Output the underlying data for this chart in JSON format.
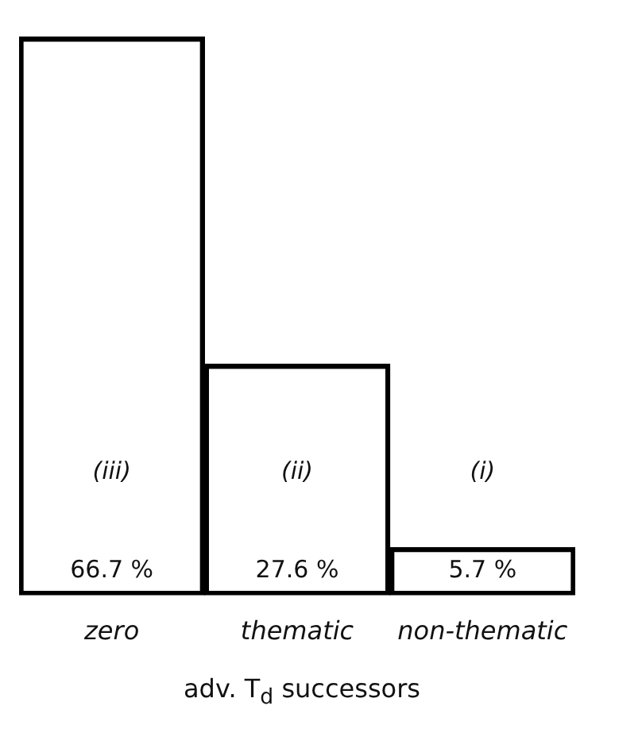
{
  "chart_data": {
    "type": "bar",
    "xlabel": "adv. T$_{d}$ successors",
    "categories": [
      "zero",
      "thematic",
      "non-thematic"
    ],
    "values": [
      66.7,
      27.6,
      5.7
    ],
    "color": "#000000",
    "value_labels": [
      "66.7 %",
      "27.6 %",
      "5.7 %"
    ],
    "annotations": [
      "(iii)",
      "(ii)",
      "(i)"
    ],
    "grid": false,
    "legend": false,
    "tick_labels": "x"
  }
}
